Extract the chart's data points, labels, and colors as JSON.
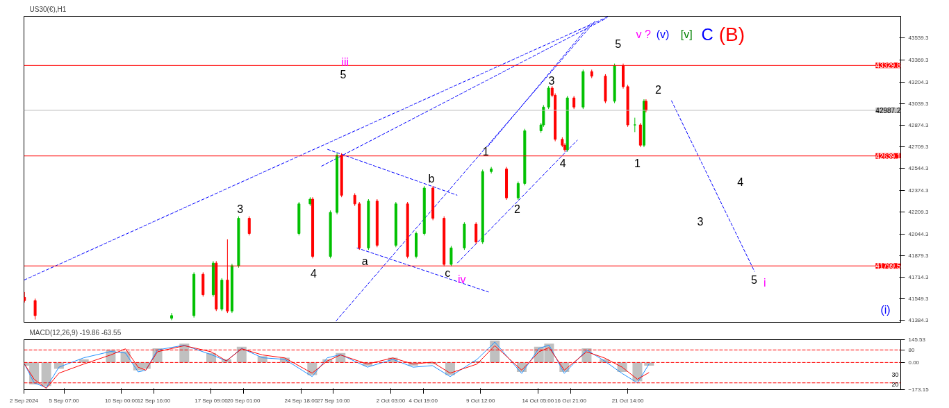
{
  "chart_data": [
    {
      "type": "candlestick",
      "title": "US30(€),H1",
      "x": [
        "2024-09-02T01:00",
        "2024-09-02T22:00",
        "2024-09-14T03:00",
        "2024-09-15T23:00",
        "2024-09-16T17:00",
        "2024-09-17T13:00",
        "2024-09-17T19:00",
        "2024-09-18T06:00",
        "2024-09-18T17:00",
        "2024-09-19T02:00",
        "2024-09-19T15:00",
        "2024-09-20T12:00",
        "2024-09-24T14:00",
        "2024-09-25T12:00",
        "2024-09-25T17:00",
        "2024-09-27T04:00",
        "2024-09-27T17:00",
        "2024-09-28T02:00",
        "2024-09-29T04:00",
        "2024-09-29T13:00",
        "2024-09-30T07:00",
        "2024-10-01T00:00",
        "2024-10-02T13:00",
        "2024-10-03T12:00",
        "2024-10-04T05:00",
        "2024-10-04T21:00",
        "2024-10-05T14:00",
        "2024-10-06T12:00",
        "2024-10-07T02:00",
        "2024-10-08T04:00",
        "2024-10-09T03:00",
        "2024-10-09T16:00",
        "2024-10-10T09:00",
        "2024-10-11T15:00",
        "2024-10-12T14:00",
        "2024-10-13T03:00",
        "2024-10-14T11:00",
        "2024-10-14T16:00",
        "2024-10-15T02:00",
        "2024-10-15T09:00",
        "2024-10-15T15:00",
        "2024-10-16T05:00",
        "2024-10-16T10:00",
        "2024-10-16T15:00",
        "2024-10-17T04:00",
        "2024-10-17T22:00",
        "2024-10-18T15:00",
        "2024-10-19T18:00",
        "2024-10-20T12:00",
        "2024-10-21T05:00",
        "2024-10-21T14:00",
        "2024-10-22T04:00",
        "2024-10-22T15:00",
        "2024-10-22T22:00",
        "2024-10-23T02:00"
      ],
      "ohlc": [
        [
          41560,
          41600,
          41520,
          41535
        ],
        [
          41535,
          41550,
          41390,
          41420
        ],
        [
          41400,
          41440,
          41385,
          41420
        ],
        [
          41420,
          41751,
          41405,
          41736
        ],
        [
          41736,
          41751,
          41565,
          41580
        ],
        [
          41580,
          41836,
          41565,
          41821
        ],
        [
          41821,
          41836,
          41455,
          41470
        ],
        [
          41470,
          41706,
          41455,
          41691
        ],
        [
          41691,
          42002,
          41440,
          41455
        ],
        [
          41455,
          41816,
          41440,
          41801
        ],
        [
          41801,
          42178,
          41786,
          42163
        ],
        [
          42163,
          42178,
          42032,
          42047
        ],
        [
          42047,
          42288,
          42032,
          42273
        ],
        [
          42273,
          42324,
          42258,
          42309
        ],
        [
          42309,
          42324,
          41857,
          41872
        ],
        [
          41872,
          42223,
          41857,
          42208
        ],
        [
          42208,
          42660,
          42193,
          42645
        ],
        [
          42645,
          42660,
          42324,
          42339
        ],
        [
          42339,
          42354,
          42258,
          42273
        ],
        [
          42273,
          42288,
          41922,
          41937
        ],
        [
          41937,
          42309,
          41922,
          42294
        ],
        [
          42294,
          42309,
          41942,
          41957
        ],
        [
          41957,
          42288,
          41942,
          42273
        ],
        [
          42273,
          42288,
          41857,
          41872
        ],
        [
          41872,
          42062,
          41857,
          42047
        ],
        [
          42047,
          42409,
          42032,
          42394
        ],
        [
          42394,
          42409,
          42148,
          42163
        ],
        [
          42163,
          42178,
          41796,
          41811
        ],
        [
          41811,
          41952,
          41796,
          41937
        ],
        [
          41937,
          42133,
          41922,
          42118
        ],
        [
          42118,
          42133,
          41967,
          41982
        ],
        [
          41982,
          42535,
          41967,
          42520
        ],
        [
          42520,
          42555,
          42505,
          42540
        ],
        [
          42540,
          42555,
          42304,
          42319
        ],
        [
          42319,
          42444,
          42304,
          42429
        ],
        [
          42429,
          42846,
          42414,
          42831
        ],
        [
          42831,
          42891,
          42816,
          42876
        ],
        [
          42876,
          43027,
          42861,
          43012
        ],
        [
          43012,
          43172,
          42997,
          43157
        ],
        [
          43157,
          43172,
          43087,
          43102
        ],
        [
          43102,
          43117,
          42751,
          42766
        ],
        [
          42766,
          42781,
          42706,
          42721
        ],
        [
          42721,
          42736,
          42671,
          42686
        ],
        [
          42686,
          43097,
          42671,
          43082
        ],
        [
          43082,
          43097,
          42997,
          43012
        ],
        [
          43012,
          43298,
          42997,
          43283
        ],
        [
          43283,
          43298,
          43233,
          43248
        ],
        [
          43248,
          43263,
          43042,
          43057
        ],
        [
          43057,
          43344,
          43042,
          43329
        ],
        [
          43329,
          43344,
          43153,
          43168
        ],
        [
          43168,
          43183,
          42861,
          42876
        ],
        [
          42876,
          42931,
          42821,
          42876
        ],
        [
          42876,
          42891,
          42706,
          42721
        ],
        [
          42721,
          43072,
          42706,
          43057
        ],
        [
          43057,
          43072,
          42972,
          42987
        ]
      ],
      "colors": [
        "#ff0000",
        "#ff0000",
        "#00c000",
        "#00c000",
        "#ff0000",
        "#00c000",
        "#ff0000",
        "#00c000",
        "#ff0000",
        "#00c000",
        "#00c000",
        "#ff0000",
        "#00c000",
        "#00c000",
        "#ff0000",
        "#00c000",
        "#00c000",
        "#ff0000",
        "#ff0000",
        "#ff0000",
        "#00c000",
        "#ff0000",
        "#00c000",
        "#ff0000",
        "#00c000",
        "#00c000",
        "#ff0000",
        "#ff0000",
        "#00c000",
        "#00c000",
        "#ff0000",
        "#00c000",
        "#00c000",
        "#ff0000",
        "#00c000",
        "#00c000",
        "#00c000",
        "#00c000",
        "#00c000",
        "#ff0000",
        "#ff0000",
        "#ff0000",
        "#ff0000",
        "#00c000",
        "#ff0000",
        "#00c000",
        "#ff0000",
        "#ff0000",
        "#00c000",
        "#ff0000",
        "#ff0000",
        "#00c000",
        "#ff0000",
        "#00c000",
        "#ff0000"
      ],
      "xlim": [
        "2024-09-02T00:00",
        "2024-11-13T00:00"
      ],
      "ylim": [
        41369,
        43705
      ],
      "yticks": [
        41384.3,
        41549.3,
        41714.3,
        41879.3,
        42044.3,
        42209.3,
        42374.3,
        42544.3,
        42709.3,
        42874.3,
        43039.3,
        43204.3,
        43369.3,
        43539.3
      ],
      "tick_labels": "y",
      "grid": false,
      "ref_lines": [
        {
          "axis": "y",
          "value": 43329.8,
          "label": "43329.8",
          "color": "#ff0000"
        },
        {
          "axis": "y",
          "value": 42987.2,
          "label": "42987.2",
          "color": "#c0c0c0"
        },
        {
          "axis": "y",
          "value": 42639.1,
          "label": "42639.1",
          "color": "#ff0000"
        },
        {
          "axis": "y",
          "value": 41799.5,
          "label": "41799.5",
          "color": "#ff0000"
        }
      ],
      "series": [
        {
          "type": "line",
          "color": "#0000ff",
          "line_style": "dashed",
          "x": [
            "2024-09-02T00:00",
            "2024-10-20T01:00"
          ],
          "values": [
            41691,
            43705
          ]
        },
        {
          "type": "line",
          "color": "#0000ff",
          "line_style": "dashed",
          "x": [
            "2024-09-26T10:00",
            "2024-10-19T20:00"
          ],
          "values": [
            42560,
            43690
          ]
        },
        {
          "type": "line",
          "color": "#0000ff",
          "line_style": "dashed",
          "x": [
            "2024-09-27T15:00",
            "2024-10-18T22:00"
          ],
          "values": [
            41379,
            43670
          ]
        },
        {
          "type": "line",
          "color": "#0000ff",
          "line_style": "dashed",
          "x": [
            "2024-10-10T02:00",
            "2024-10-18T14:00"
          ],
          "values": [
            42710,
            43655
          ]
        },
        {
          "type": "line",
          "color": "#0000ff",
          "line_style": "dashed",
          "x": [
            "2024-10-07T14:00",
            "2024-10-17T11:00"
          ],
          "values": [
            41821,
            42761
          ]
        },
        {
          "type": "line",
          "color": "#0000ff",
          "line_style": "dashed",
          "x": [
            "2024-09-26T22:00",
            "2024-10-07T14:00"
          ],
          "values": [
            42690,
            42339
          ]
        },
        {
          "type": "line",
          "color": "#0000ff",
          "line_style": "dashed",
          "x": [
            "2024-09-29T08:00",
            "2024-10-10T04:00"
          ],
          "values": [
            41937,
            41600
          ]
        },
        {
          "type": "line",
          "color": "#0000ff",
          "line_style": "dashed",
          "x": [
            "2024-10-25T04:00",
            "2024-11-01T00:00"
          ],
          "values": [
            43062,
            41756
          ]
        }
      ],
      "annotations": [
        "iii",
        "5",
        "3",
        "4",
        "a",
        "b",
        "c",
        "iv",
        "1",
        "2",
        "3",
        "4",
        "5",
        "1",
        "2",
        "4",
        "3",
        "5",
        "i",
        "(i)",
        "v ?",
        "(v)",
        "[v]",
        "C",
        "(B)"
      ]
    },
    {
      "type": "bar",
      "title": "MACD(12,26,9) -19.86 -63.55",
      "x": [
        "2024-09-02T01:00",
        "2024-09-02T20:00",
        "2024-09-03T20:00",
        "2024-09-04T21:00",
        "2024-09-06T22:00",
        "2024-09-09T03:00",
        "2024-09-10T08:00",
        "2024-09-11T09:00",
        "2024-09-12T00:00",
        "2024-09-12T23:00",
        "2024-09-15T04:00",
        "2024-09-17T09:00",
        "2024-09-18T15:00",
        "2024-09-19T21:00",
        "2024-09-21T14:00",
        "2024-09-23T10:00",
        "2024-09-25T16:00",
        "2024-09-26T22:00",
        "2024-09-28T00:00",
        "2024-09-30T05:00",
        "2024-10-02T07:00",
        "2024-10-03T23:00",
        "2024-10-05T13:00",
        "2024-10-07T00:00",
        "2024-10-09T05:00",
        "2024-10-10T16:00",
        "2024-10-12T21:00",
        "2024-10-14T07:00",
        "2024-10-15T03:00",
        "2024-10-16T09:00",
        "2024-10-18T05:00",
        "2024-10-19T16:00",
        "2024-10-21T03:00",
        "2024-10-22T09:00",
        "2024-10-23T08:00"
      ],
      "series": [
        {
          "type": "bar",
          "color": "#c0c0c0",
          "values": [
            -20,
            -140,
            -150,
            -40,
            20,
            80,
            70,
            -50,
            -40,
            90,
            120,
            60,
            20,
            100,
            40,
            30,
            -80,
            20,
            60,
            -20,
            30,
            -20,
            -10,
            -80,
            10,
            140,
            -60,
            100,
            120,
            -60,
            90,
            20,
            -60,
            -120,
            -20
          ]
        },
        {
          "type": "line",
          "color": "#1e90ff",
          "values": [
            -10,
            -130,
            -160,
            -30,
            30,
            70,
            60,
            -60,
            -50,
            80,
            110,
            50,
            10,
            90,
            30,
            20,
            -90,
            30,
            50,
            -30,
            20,
            -30,
            -20,
            -90,
            20,
            130,
            -70,
            90,
            110,
            -70,
            80,
            10,
            -70,
            -130,
            -10
          ]
        },
        {
          "type": "line",
          "color": "#ff0000",
          "values": [
            -10,
            -107,
            -165,
            -68,
            -10,
            48,
            87,
            -30,
            -49,
            68,
            107,
            68,
            10,
            87,
            48,
            29,
            -68,
            10,
            48,
            -10,
            29,
            -10,
            2,
            -68,
            -10,
            107,
            -49,
            68,
            95,
            -49,
            68,
            29,
            -30,
            -107,
            -64
          ]
        }
      ],
      "xlim": [
        "2024-09-02T00:00",
        "2024-11-13T00:00"
      ],
      "ylim": [
        -173.15,
        145.53
      ],
      "xticks": [
        {
          "value": "2024-09-02T00:00",
          "label": "2 Sep 2024"
        },
        {
          "value": "2024-09-05T07:00",
          "label": "5 Sep 07:00"
        },
        {
          "value": "2024-09-10T00:00",
          "label": "10 Sep 00:00"
        },
        {
          "value": "2024-09-12T16:00",
          "label": "12 Sep 16:00"
        },
        {
          "value": "2024-09-17T09:00",
          "label": "17 Sep 09:00"
        },
        {
          "value": "2024-09-20T01:00",
          "label": "20 Sep 01:00"
        },
        {
          "value": "2024-09-24T18:00",
          "label": "24 Sep 18:00"
        },
        {
          "value": "2024-09-27T10:00",
          "label": "27 Sep 10:00"
        },
        {
          "value": "2024-10-02T03:00",
          "label": "2 Oct 03:00"
        },
        {
          "value": "2024-10-04T19:00",
          "label": "4 Oct 19:00"
        },
        {
          "value": "2024-10-09T12:00",
          "label": "9 Oct 12:00"
        },
        {
          "value": "2024-10-14T05:00",
          "label": "14 Oct 05:00"
        },
        {
          "value": "2024-10-16T21:00",
          "label": "16 Oct 21:00"
        },
        {
          "value": "2024-10-21T14:00",
          "label": "21 Oct 14:00"
        }
      ],
      "yticks": [
        145.53,
        80,
        {
          "value": 0,
          "label": "0.00"
        },
        -173.15
      ],
      "grid": false,
      "ref_lines": [
        {
          "axis": "y",
          "value": 80,
          "color": "#ff0000",
          "line_style": "dashed"
        },
        {
          "axis": "y",
          "value": 0,
          "color": "#ff0000",
          "line_style": "dashed"
        },
        {
          "axis": "y",
          "value": -130,
          "color": "#ff0000",
          "line_style": "dashed"
        }
      ],
      "annotations": [
        "30",
        "20"
      ]
    }
  ]
}
